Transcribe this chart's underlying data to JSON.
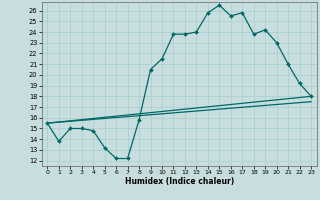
{
  "xlabel": "Humidex (Indice chaleur)",
  "bg_color": "#c8dede",
  "grid_color": "#a8cece",
  "line_color": "#006868",
  "xlim": [
    -0.5,
    23.5
  ],
  "ylim": [
    11.5,
    26.8
  ],
  "yticks": [
    12,
    13,
    14,
    15,
    16,
    17,
    18,
    19,
    20,
    21,
    22,
    23,
    24,
    25,
    26
  ],
  "xticks": [
    0,
    1,
    2,
    3,
    4,
    5,
    6,
    7,
    8,
    9,
    10,
    11,
    12,
    13,
    14,
    15,
    16,
    17,
    18,
    19,
    20,
    21,
    22,
    23
  ],
  "main_x": [
    0,
    1,
    2,
    3,
    4,
    5,
    6,
    7,
    8,
    9,
    10,
    11,
    12,
    13,
    14,
    15,
    16,
    17,
    18,
    19,
    20,
    21,
    22,
    23
  ],
  "main_y": [
    15.5,
    13.8,
    15.0,
    15.0,
    14.8,
    13.2,
    12.2,
    12.2,
    15.8,
    20.5,
    21.5,
    23.8,
    23.8,
    24.0,
    25.8,
    26.5,
    25.5,
    25.8,
    23.8,
    24.2,
    23.0,
    21.0,
    19.2,
    18.0
  ],
  "line2_x": [
    0,
    23
  ],
  "line2_y": [
    15.5,
    18.0
  ],
  "line3_x": [
    0,
    23
  ],
  "line3_y": [
    15.5,
    17.5
  ]
}
